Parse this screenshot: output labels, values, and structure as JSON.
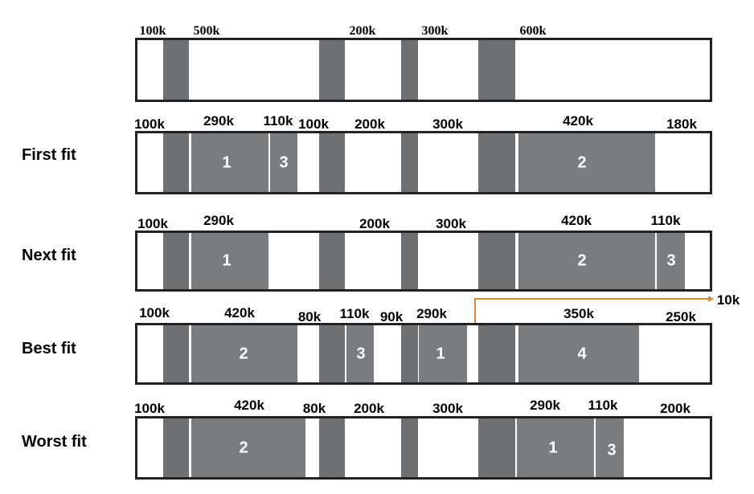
{
  "initial": {
    "sizes": [
      "100k",
      "500k",
      "200k",
      "300k",
      "600k"
    ]
  },
  "first_fit": {
    "label": "First fit",
    "sizes": [
      "100k",
      "290k",
      "110k",
      "100k",
      "200k",
      "300k",
      "420k",
      "180k"
    ],
    "blocks": [
      "1",
      "3",
      "2"
    ]
  },
  "next_fit": {
    "label": "Next fit",
    "sizes": [
      "100k",
      "290k",
      "200k",
      "300k",
      "420k",
      "110k"
    ],
    "blocks": [
      "1",
      "2",
      "3"
    ]
  },
  "best_fit": {
    "label": "Best fit",
    "sizes": [
      "100k",
      "420k",
      "80k",
      "110k",
      "90k",
      "290k",
      "350k",
      "250k"
    ],
    "blocks": [
      "2",
      "3",
      "1",
      "4"
    ],
    "fragment_label": "10k"
  },
  "worst_fit": {
    "label": "Worst fit",
    "sizes": [
      "100k",
      "420k",
      "80k",
      "200k",
      "300k",
      "290k",
      "110k",
      "200k"
    ],
    "blocks": [
      "2",
      "1",
      "3"
    ]
  },
  "colors": {
    "occupied": "#6d7173",
    "allocated": "#7a7d7f",
    "fragment_pointer": "#e0873b"
  }
}
